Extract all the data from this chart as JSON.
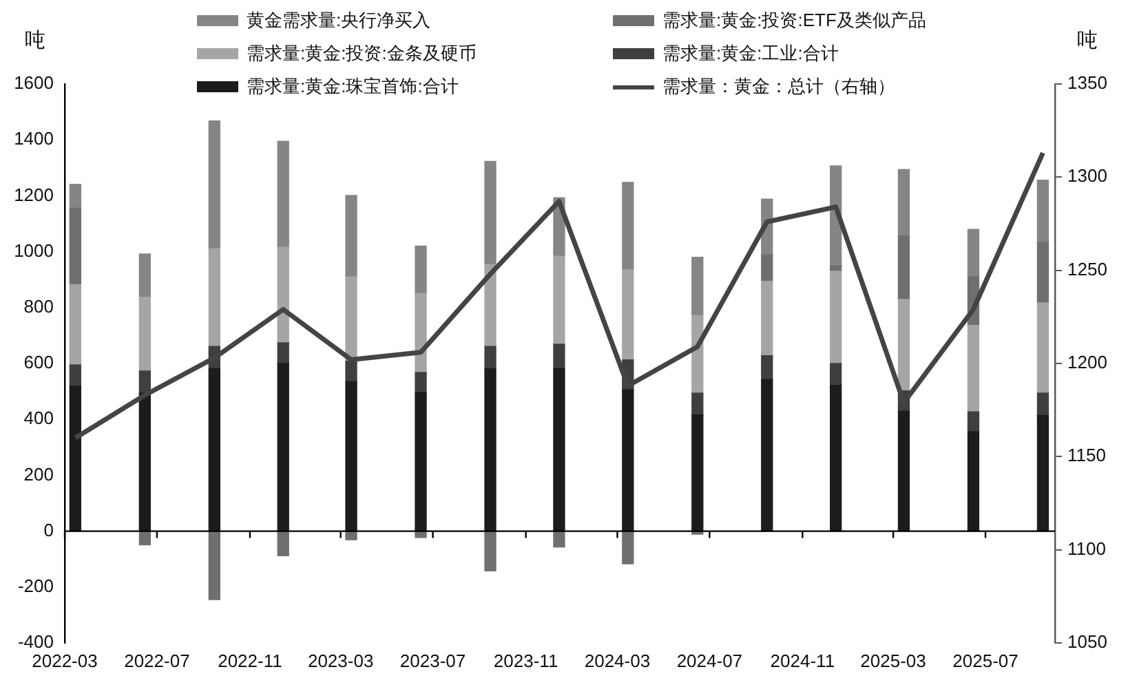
{
  "chart_data": {
    "type": "bar",
    "stacked": true,
    "ylabel": "吨",
    "y2label": "吨",
    "legend": "top",
    "marker": "none",
    "x": [
      "2022-03-15",
      "2022-06-15",
      "2022-09-15",
      "2022-12-15",
      "2023-03-15",
      "2023-06-15",
      "2023-09-15",
      "2023-12-15",
      "2024-03-15",
      "2024-06-15",
      "2024-09-15",
      "2024-12-15",
      "2025-03-15",
      "2025-06-15",
      "2025-09-15"
    ],
    "xlim": [
      "2022-03",
      "2025-10"
    ],
    "xticks": [
      "2022-03",
      "2022-07",
      "2022-11",
      "2023-03",
      "2023-07",
      "2023-11",
      "2024-03",
      "2024-07",
      "2024-11",
      "2025-03",
      "2025-07"
    ],
    "ylim": [
      -400,
      1600
    ],
    "yticks": [
      -400,
      -200,
      0,
      200,
      400,
      600,
      800,
      1000,
      1200,
      1400,
      1600
    ],
    "y2lim": [
      1050,
      1350
    ],
    "y2ticks": [
      1050,
      1100,
      1150,
      1200,
      1250,
      1300,
      1350
    ],
    "series": [
      {
        "name": "需求量:黄金:珠宝首饰:合计",
        "color": "#1c1c1c",
        "values": [
          519,
          494,
          581,
          600,
          535,
          496,
          581,
          581,
          506,
          416,
          543,
          522,
          429,
          356,
          414
        ]
      },
      {
        "name": "需求量:黄金:工业:合计",
        "color": "#3f3f3f",
        "values": [
          76,
          79,
          80,
          74,
          73,
          72,
          80,
          88,
          107,
          78,
          85,
          78,
          73,
          71,
          80
        ]
      },
      {
        "name": "需求量:黄金:投资:金条及硬币",
        "color": "#a5a5a5",
        "values": [
          287,
          264,
          350,
          342,
          302,
          282,
          293,
          315,
          322,
          278,
          266,
          330,
          327,
          309,
          323
        ]
      },
      {
        "name": "需求量:黄金:投资:ETF及类似产品",
        "color": "#6f6f6f",
        "values": [
          273,
          -49,
          -245,
          -88,
          -31,
          -23,
          -142,
          -57,
          -117,
          -11,
          95,
          20,
          228,
          174,
          216
        ]
      },
      {
        "name": "黄金需求量:央行净买入",
        "color": "#858585",
        "values": [
          86,
          155,
          457,
          379,
          291,
          170,
          369,
          209,
          313,
          208,
          199,
          357,
          237,
          170,
          223
        ]
      },
      {
        "name": "需求量：黄金：总计（右轴）",
        "type": "line",
        "axis": "y2",
        "color": "#444444",
        "values": [
          1160,
          1183,
          1203,
          1229,
          1202,
          1206,
          1248,
          1287,
          1188,
          1209,
          1276,
          1284,
          1179,
          1229,
          1313
        ]
      }
    ]
  }
}
